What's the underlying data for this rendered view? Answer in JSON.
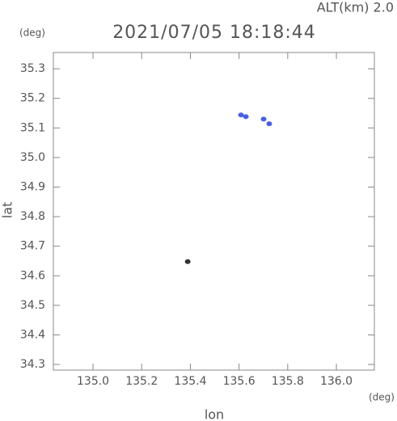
{
  "chart_data": {
    "type": "scatter",
    "title": "2021/07/05 18:18:44",
    "subtitle": "ALT(km) 2.0",
    "x_label": "lon",
    "y_label": "lat",
    "x_unit": "(deg)",
    "y_unit": "(deg)",
    "x": [
      135.608,
      135.628,
      135.701,
      135.724,
      135.389
    ],
    "values": [
      35.144,
      35.138,
      35.13,
      35.114,
      34.648
    ],
    "colors": [
      "#4a5fe0",
      "#4a5fe0",
      "#4a5fe0",
      "#4a5fe0",
      "#333333"
    ],
    "xlim": [
      134.837,
      136.156
    ],
    "ylim": [
      34.281,
      35.355
    ],
    "xticks": [
      {
        "value": 135,
        "label": "135.0"
      },
      135.2,
      135.4,
      135.6,
      135.8,
      {
        "value": 136,
        "label": "136.0"
      }
    ],
    "yticks": [
      34.3,
      34.4,
      34.5,
      34.6,
      34.7,
      34.8,
      34.9,
      {
        "value": 35,
        "label": "35.0"
      },
      35.1,
      35.2,
      35.3
    ]
  }
}
